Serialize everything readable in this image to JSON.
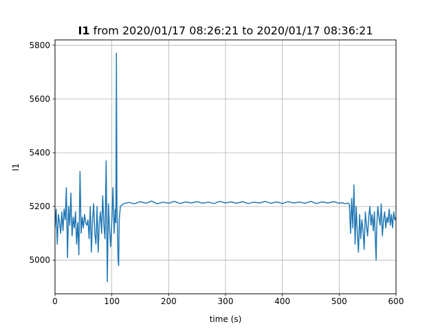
{
  "chart_data": {
    "type": "line",
    "title_bold": "I1",
    "title_rest": " from 2020/01/17 08:26:21 to 2020/01/17 08:36:21",
    "xlabel": "time (s)",
    "ylabel": "I1",
    "xlim": [
      0,
      600
    ],
    "ylim": [
      4875,
      5820
    ],
    "xticks": [
      0,
      100,
      200,
      300,
      400,
      500,
      600
    ],
    "yticks": [
      5000,
      5200,
      5400,
      5600,
      5800
    ],
    "grid": true,
    "line_color": "#1f77b4",
    "series": [
      {
        "x": [
          0,
          2,
          4,
          6,
          8,
          10,
          12,
          14,
          16,
          18,
          20,
          22,
          24,
          26,
          28,
          30,
          32,
          34,
          36,
          38,
          40,
          42,
          44,
          46,
          48,
          50,
          52,
          54,
          56,
          58,
          60,
          62,
          64,
          66,
          68,
          70,
          72,
          74,
          76,
          78,
          80,
          82,
          84,
          86,
          88,
          90,
          91,
          92,
          94,
          96,
          98,
          100,
          102,
          104,
          106,
          107,
          108,
          109,
          110,
          111,
          112,
          113,
          115,
          120,
          130,
          140,
          150,
          160,
          170,
          180,
          190,
          200,
          210,
          220,
          230,
          240,
          250,
          260,
          270,
          280,
          290,
          300,
          310,
          320,
          330,
          340,
          350,
          360,
          370,
          380,
          390,
          400,
          410,
          420,
          430,
          440,
          450,
          460,
          470,
          480,
          490,
          500,
          505,
          510,
          515,
          518,
          520,
          522,
          524,
          526,
          528,
          530,
          532,
          534,
          536,
          538,
          540,
          542,
          544,
          546,
          548,
          550,
          552,
          554,
          556,
          558,
          560,
          562,
          564,
          565,
          566,
          568,
          570,
          572,
          574,
          576,
          578,
          580,
          582,
          584,
          586,
          588,
          590,
          592,
          594,
          596,
          598,
          600
        ],
        "values": [
          5120,
          5190,
          5060,
          5170,
          5140,
          5100,
          5180,
          5110,
          5190,
          5150,
          5270,
          5010,
          5200,
          5130,
          5250,
          5090,
          5160,
          5120,
          5180,
          5060,
          5140,
          5020,
          5330,
          5100,
          5160,
          5120,
          5170,
          5140,
          5130,
          5150,
          5080,
          5200,
          5030,
          5150,
          5210,
          5100,
          5060,
          5200,
          5030,
          5140,
          5180,
          5100,
          5240,
          5130,
          5080,
          5370,
          5150,
          4920,
          5210,
          5110,
          5050,
          5150,
          5270,
          5100,
          5190,
          5140,
          5770,
          5200,
          5100,
          5000,
          4980,
          5150,
          5200,
          5210,
          5215,
          5210,
          5218,
          5212,
          5220,
          5210,
          5216,
          5212,
          5219,
          5211,
          5217,
          5213,
          5218,
          5212,
          5216,
          5211,
          5219,
          5213,
          5217,
          5212,
          5218,
          5211,
          5216,
          5213,
          5219,
          5212,
          5217,
          5211,
          5218,
          5213,
          5216,
          5212,
          5219,
          5211,
          5217,
          5213,
          5218,
          5212,
          5214,
          5210,
          5213,
          5208,
          5100,
          5230,
          5120,
          5280,
          5060,
          5200,
          5100,
          5030,
          5170,
          5080,
          5150,
          5110,
          5040,
          5180,
          5130,
          5090,
          5160,
          5200,
          5130,
          5170,
          5110,
          5180,
          5060,
          5000,
          5120,
          5200,
          5160,
          5130,
          5210,
          5090,
          5150,
          5180,
          5120,
          5160,
          5140,
          5190,
          5130,
          5170,
          5120,
          5180,
          5150,
          5160
        ]
      }
    ]
  }
}
